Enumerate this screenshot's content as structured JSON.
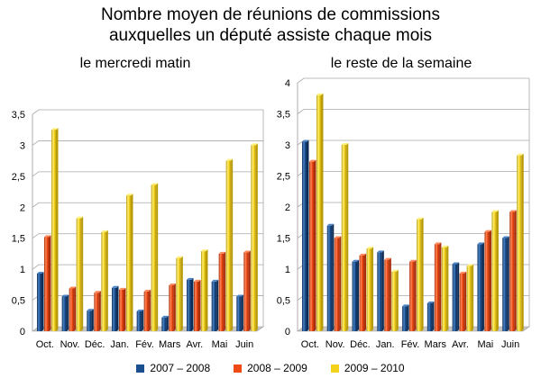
{
  "title_line_1": "Nombre moyen de réunions de commissions",
  "title_line_2": "auxquelles un député assiste chaque mois",
  "colors": {
    "series": [
      "#1a4f8f",
      "#f04a14",
      "#f4d21c"
    ],
    "series_light": [
      "#4d85c8",
      "#ff8a5c",
      "#fff07a"
    ],
    "series_dark": [
      "#0d2c55",
      "#a82c08",
      "#b89a08"
    ],
    "grid": "#a8a8a8",
    "floor": "#c8c8c8"
  },
  "chart_data": [
    {
      "type": "bar",
      "title": "le mercredi matin",
      "categories": [
        "Oct.",
        "Nov.",
        "Déc.",
        "Jan.",
        "Fév.",
        "Mars",
        "Avr.",
        "Mai",
        "Juin"
      ],
      "ylim": [
        0,
        3.5
      ],
      "yticks": [
        "0",
        "0,5",
        "1",
        "1,5",
        "2",
        "2,5",
        "3",
        "3,5"
      ],
      "grid": true,
      "series": [
        {
          "name": "2007 – 2008",
          "values": [
            0.93,
            0.56,
            0.33,
            0.7,
            0.32,
            0.22,
            0.83,
            0.8,
            0.56
          ]
        },
        {
          "name": "2008 – 2009",
          "values": [
            1.52,
            0.69,
            0.62,
            0.67,
            0.64,
            0.74,
            0.8,
            1.25,
            1.27
          ]
        },
        {
          "name": "2009 – 2010",
          "values": [
            3.25,
            1.82,
            1.6,
            2.19,
            2.36,
            1.18,
            1.29,
            2.75,
            3.0
          ]
        }
      ]
    },
    {
      "type": "bar",
      "title": "le reste de la semaine",
      "categories": [
        "Oct.",
        "Nov.",
        "Déc.",
        "Jan.",
        "Fév.",
        "Mars",
        "Avr.",
        "Mai",
        "Juin"
      ],
      "ylim": [
        0,
        4
      ],
      "yticks": [
        "0",
        "0,5",
        "1",
        "1,5",
        "2",
        "2,5",
        "3",
        "3,5",
        "4"
      ],
      "grid": true,
      "series": [
        {
          "name": "2007 – 2008",
          "values": [
            3.05,
            1.7,
            1.12,
            1.27,
            0.4,
            0.45,
            1.08,
            1.4,
            1.5
          ]
        },
        {
          "name": "2008 – 2009",
          "values": [
            2.73,
            1.5,
            1.22,
            1.15,
            1.12,
            1.4,
            0.93,
            1.6,
            1.92
          ]
        },
        {
          "name": "2009 – 2010",
          "values": [
            3.8,
            3.0,
            1.33,
            0.96,
            1.8,
            1.35,
            1.05,
            1.92,
            2.83
          ]
        }
      ]
    }
  ],
  "legend": [
    "2007 – 2008",
    "2008 – 2009",
    "2009 – 2010"
  ]
}
